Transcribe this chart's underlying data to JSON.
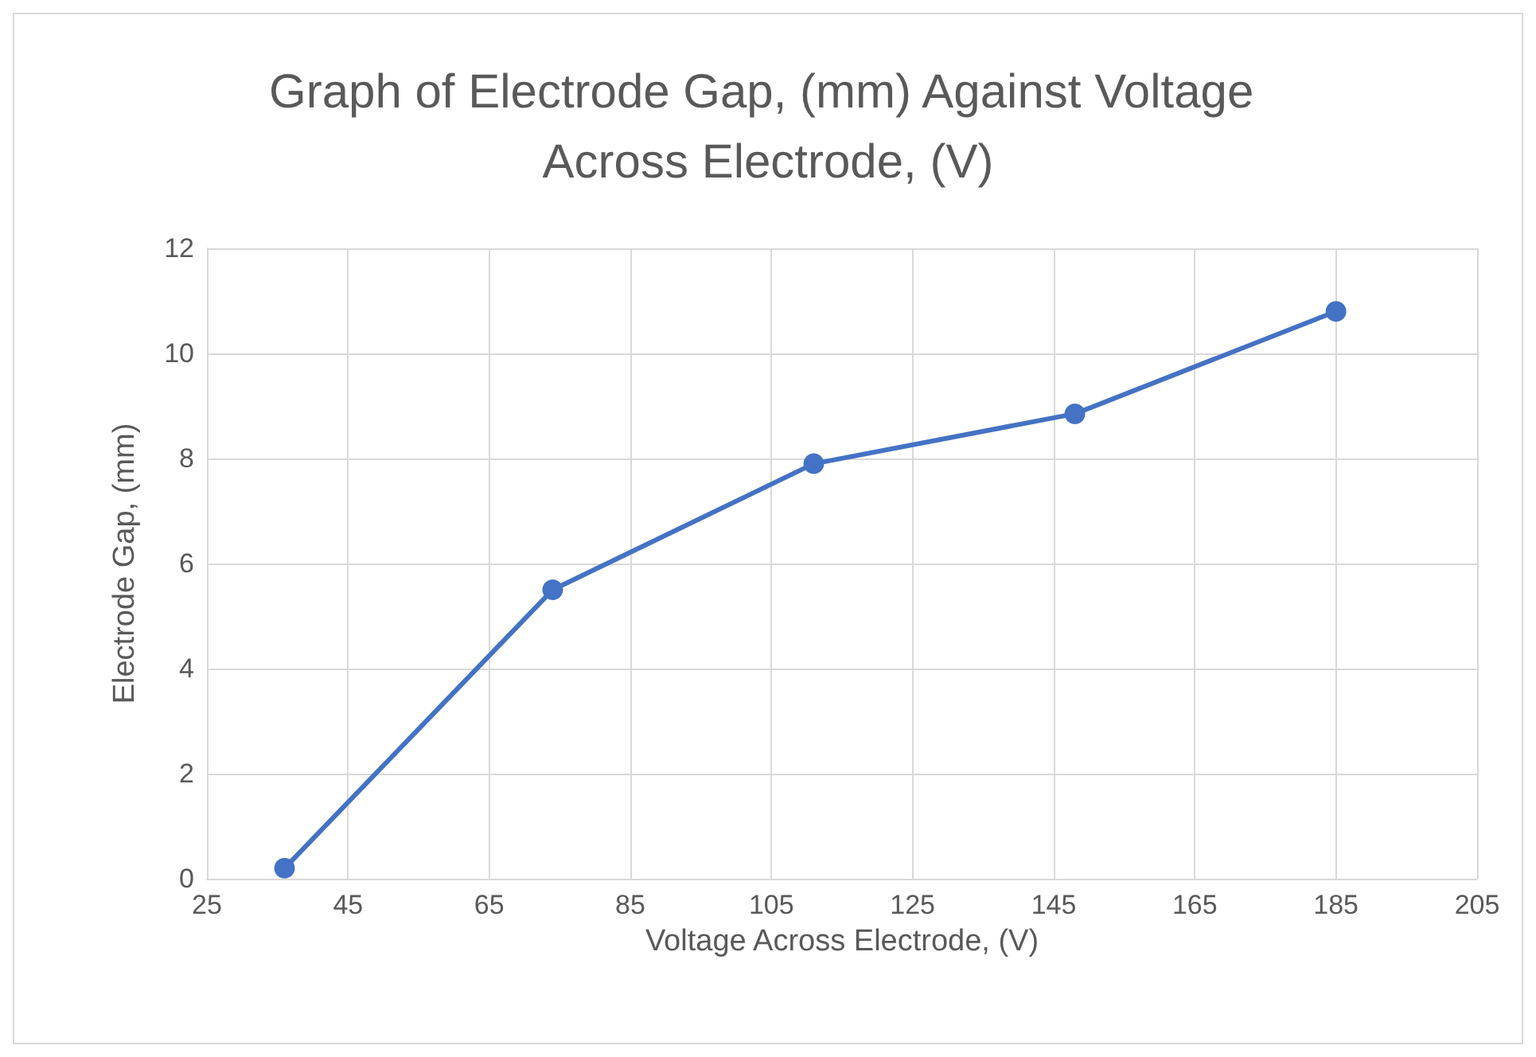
{
  "chart_data": {
    "type": "line",
    "title": "Graph of Electrode Gap, (mm) Against Voltage Across Electrode, (V)",
    "xlabel": "Voltage Across Electrode, (V)",
    "ylabel": "Electrode Gap, (mm)",
    "x": [
      36,
      74,
      111,
      148,
      185
    ],
    "series": [
      {
        "color": "#4472c4",
        "values": [
          0.2,
          5.5,
          7.9,
          8.85,
          10.8
        ]
      }
    ],
    "xlim": [
      25,
      205
    ],
    "xticks": [
      25,
      45,
      65,
      85,
      105,
      125,
      145,
      165,
      185,
      205
    ],
    "ylim": [
      0,
      12
    ],
    "yticks": [
      0,
      2,
      4,
      6,
      8,
      10,
      12
    ],
    "grid": true,
    "marker": "circle",
    "line_style": "solid"
  }
}
